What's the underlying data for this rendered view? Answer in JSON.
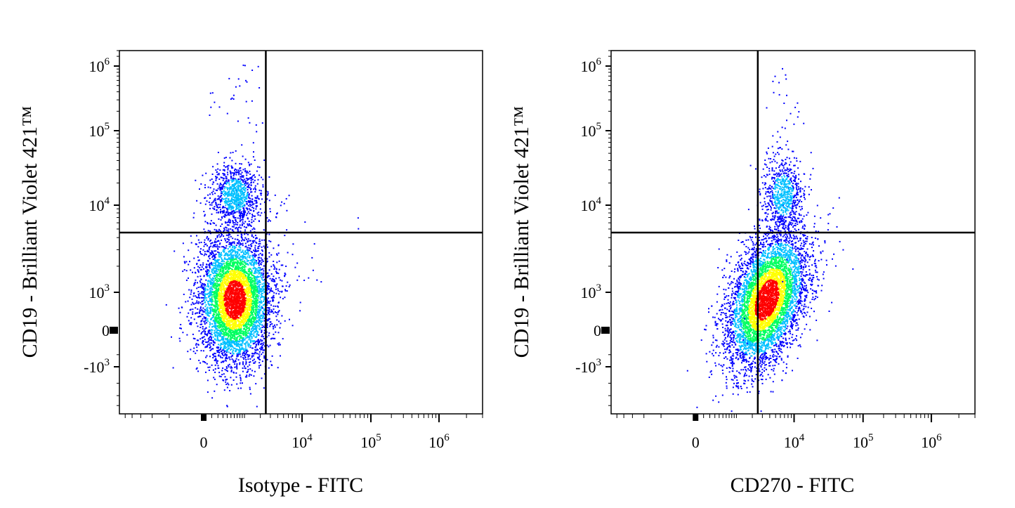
{
  "chart_data": [
    {
      "type": "scatter",
      "subtype": "flow-cytometry-density-dot-plot",
      "xlabel": "Isotype - FITC",
      "ylabel": "CD19 - Brilliant Violet 421™",
      "x_scale": "biexponential",
      "y_scale": "biexponential",
      "x_ticks": [
        "0",
        "10^4",
        "10^5",
        "10^6"
      ],
      "y_ticks": [
        "10^6",
        "10^5",
        "10^4",
        "10^3",
        "0",
        "-10^3"
      ],
      "quadrant_gate": {
        "x": 2500,
        "y": 4500
      },
      "populations": [
        {
          "name": "",
          "x_center": 600,
          "y_center": 700,
          "description": "CD19- lower-left population (dense, red core)"
        },
        {
          "name": "",
          "x_center": 600,
          "y_center": 14000,
          "description": "CD19+ upper-left population"
        }
      ],
      "density_colors": [
        "#0000ff",
        "#00c0ff",
        "#00ff60",
        "#ffff00",
        "#ff0000"
      ]
    },
    {
      "type": "scatter",
      "subtype": "flow-cytometry-density-dot-plot",
      "xlabel": "CD270 - FITC",
      "ylabel": "CD19 - Brilliant Violet 421™",
      "x_scale": "biexponential",
      "y_scale": "biexponential",
      "x_ticks": [
        "0",
        "10^4",
        "10^5",
        "10^6"
      ],
      "y_ticks": [
        "10^6",
        "10^5",
        "10^4",
        "10^3",
        "0",
        "-10^3"
      ],
      "quadrant_gate": {
        "x": 2500,
        "y": 4500
      },
      "populations": [
        {
          "name": "",
          "x_center": 3500,
          "y_center": 700,
          "description": "lower population shifted right, straddling x gate"
        },
        {
          "name": "",
          "x_center": 6500,
          "y_center": 14000,
          "description": "CD19+ CD270+ upper-right population"
        }
      ],
      "density_colors": [
        "#0000ff",
        "#00c0ff",
        "#00ff60",
        "#ffff00",
        "#ff0000"
      ]
    }
  ]
}
